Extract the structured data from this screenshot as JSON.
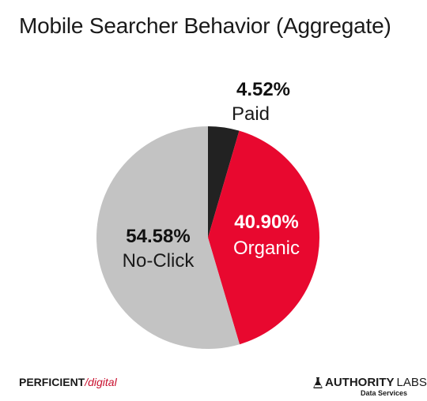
{
  "chart_data": {
    "type": "pie",
    "title": "Mobile Searcher Behavior (Aggregate)",
    "slices": [
      {
        "label": "Paid",
        "value": 4.52,
        "display": "4.52%",
        "color": "#222222"
      },
      {
        "label": "Organic",
        "value": 40.9,
        "display": "40.90%",
        "color": "#e8082f"
      },
      {
        "label": "No-Click",
        "value": 54.58,
        "display": "54.58%",
        "color": "#c3c3c3"
      }
    ]
  },
  "logos": {
    "left": {
      "brand": "PERFICIENT",
      "slash": "/",
      "sub": "digital"
    },
    "right": {
      "name_a": "AUTHORITY",
      "name_b": "LABS",
      "tag": "Data Services"
    }
  }
}
